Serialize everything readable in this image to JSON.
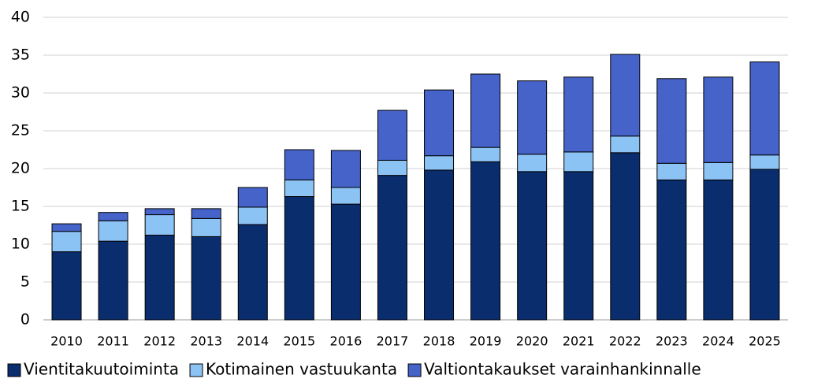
{
  "chart_data": {
    "type": "stacked-bar",
    "categories": [
      "2010",
      "2011",
      "2012",
      "2013",
      "2014",
      "2015",
      "2016",
      "2017",
      "2018",
      "2019",
      "2020",
      "2021",
      "2022",
      "2023",
      "2024",
      "2025"
    ],
    "series": [
      {
        "name": "Vientitakuutoiminta",
        "color": "#0a2d6e",
        "values": [
          9.0,
          10.4,
          11.2,
          11.0,
          12.6,
          16.3,
          15.3,
          19.1,
          19.8,
          20.9,
          19.6,
          19.6,
          22.1,
          18.5,
          18.5,
          19.9
        ]
      },
      {
        "name": "Kotimainen vastuukanta",
        "color": "#8cc3f5",
        "values": [
          2.7,
          2.7,
          2.7,
          2.4,
          2.3,
          2.2,
          2.2,
          2.0,
          1.9,
          1.9,
          2.3,
          2.6,
          2.2,
          2.2,
          2.3,
          1.9
        ]
      },
      {
        "name": "Valtiontakaukset varainhankinnalle",
        "color": "#4563c9",
        "values": [
          1.0,
          1.1,
          0.8,
          1.3,
          2.6,
          4.0,
          4.9,
          6.6,
          8.7,
          9.7,
          9.7,
          9.9,
          10.8,
          11.2,
          11.3,
          12.3
        ]
      }
    ],
    "ylim": [
      0,
      40
    ],
    "yticks": [
      0,
      5,
      10,
      15,
      20,
      25,
      30,
      35,
      40
    ],
    "grid": true,
    "legend": "bottom"
  }
}
